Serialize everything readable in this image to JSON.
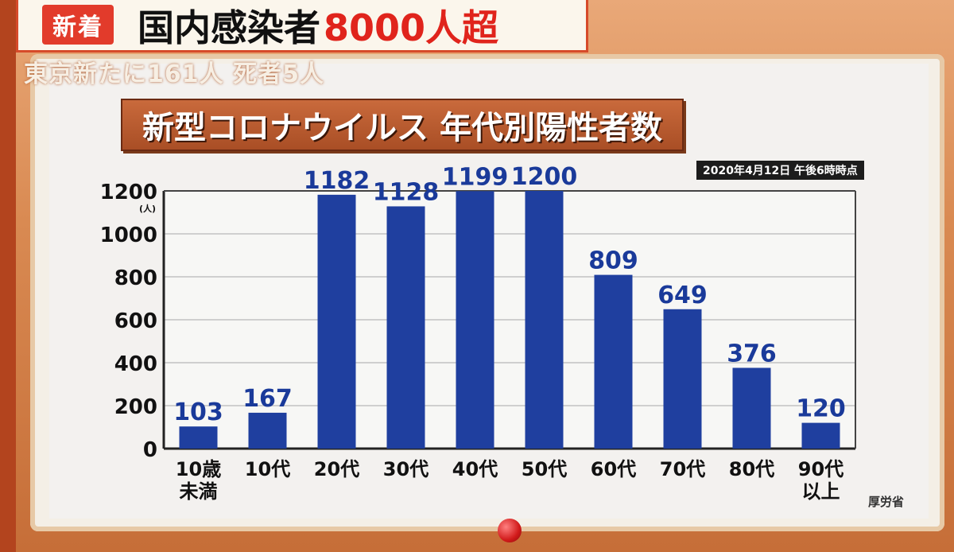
{
  "header": {
    "badge": "新着",
    "headline_part1": "国内感染者",
    "headline_part2": "8000人超",
    "subhead": "東京新たに161人 死者5人"
  },
  "chart_title": "新型コロナウイルス 年代別陽性者数",
  "date_note": "2020年4月12日 午後6時時点",
  "source": "厚労省",
  "colors": {
    "bar": "#1f3f9f",
    "value_label": "#1a3a9a",
    "grid": "#cfcfcf"
  },
  "chart_data": {
    "type": "bar",
    "title": "新型コロナウイルス 年代別陽性者数",
    "y_unit": "(人)",
    "ylim": [
      0,
      1200
    ],
    "yticks": [
      0,
      200,
      400,
      600,
      800,
      1000,
      1200
    ],
    "categories": [
      [
        "10歳",
        "未満"
      ],
      [
        "10代"
      ],
      [
        "20代"
      ],
      [
        "30代"
      ],
      [
        "40代"
      ],
      [
        "50代"
      ],
      [
        "60代"
      ],
      [
        "70代"
      ],
      [
        "80代"
      ],
      [
        "90代",
        "以上"
      ]
    ],
    "values": [
      103,
      167,
      1182,
      1128,
      1199,
      1200,
      809,
      649,
      376,
      120
    ],
    "grid": true
  }
}
